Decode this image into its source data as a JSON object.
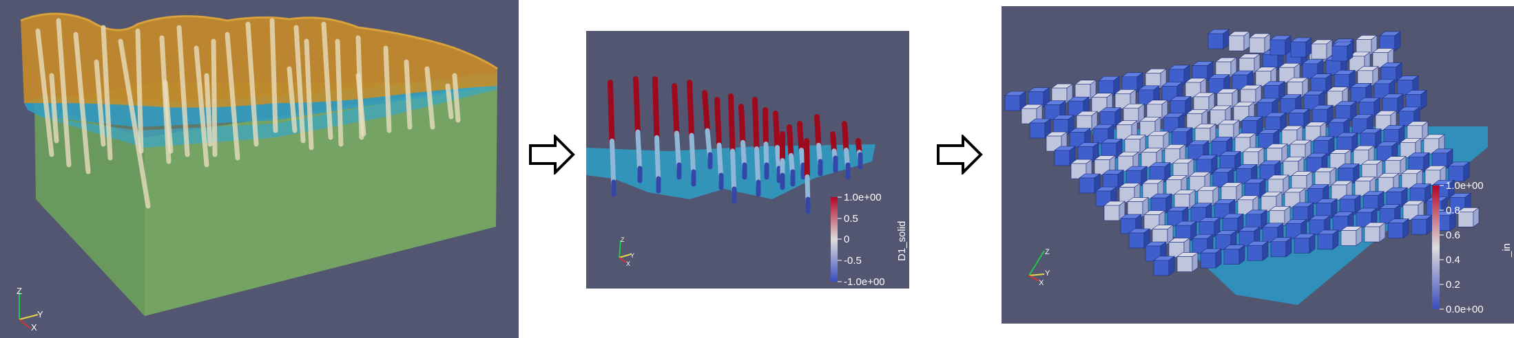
{
  "panel1": {
    "axes": {
      "z": "Z",
      "y": "Y",
      "x": "X"
    }
  },
  "panel2": {
    "axes": {
      "z": "Z",
      "y": "Y",
      "x": "X"
    },
    "colorbar": {
      "title": "D1_solid",
      "ticks": [
        "1.0e+00",
        "0.5",
        "0",
        "-0.5",
        "-1.0e+00"
      ]
    }
  },
  "panel3": {
    "axes": {
      "z": "Z",
      "y": "Y",
      "x": "X"
    },
    "colorbar": {
      "title": "_in",
      "ticks": [
        "1.0e+00",
        "0.8",
        "0.6",
        "0.4",
        "0.2",
        "0.0e+00"
      ]
    }
  },
  "colors": {
    "background": "#525670",
    "orange_layer": "#c98d25",
    "blue_layer": "#2f9dc4",
    "green_block": "#6d9e5c",
    "wells": "#e9e2c6",
    "red": "#b4041d",
    "cube_blue": "#3f5fcc",
    "cube_light": "#cdd2e6"
  }
}
